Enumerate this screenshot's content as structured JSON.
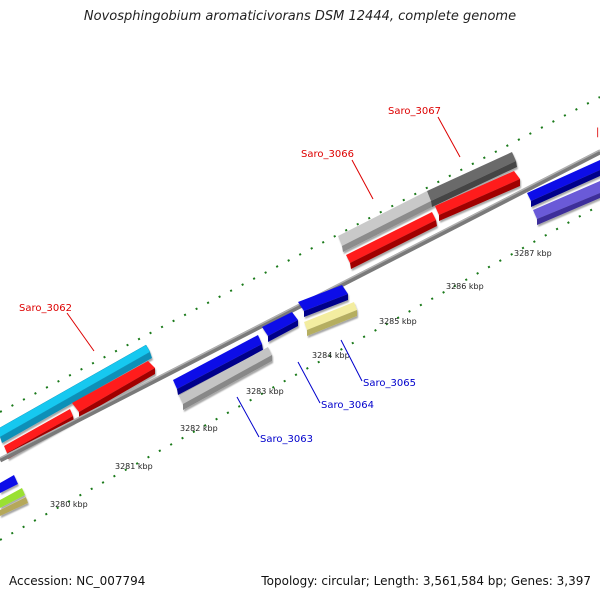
{
  "title": "Novosphingobium aromaticivorans DSM 12444, complete genome",
  "footer": {
    "accession": "Accession: NC_007794",
    "stats": "Topology: circular; Length: 3,561,584 bp; Genes: 3,397"
  },
  "colors": {
    "backbone": "#8a8a8a",
    "ticks": "#1a7a1a",
    "label_red": "#dd0000",
    "label_blue": "#0000cc"
  },
  "scale": [
    {
      "label": "3280 kbp",
      "kbp": 3280
    },
    {
      "label": "3281 kbp",
      "kbp": 3281
    },
    {
      "label": "3282 kbp",
      "kbp": 3282
    },
    {
      "label": "3283 kbp",
      "kbp": 3283
    },
    {
      "label": "3284 kbp",
      "kbp": 3284
    },
    {
      "label": "3285 kbp",
      "kbp": 3285
    },
    {
      "label": "3286 kbp",
      "kbp": 3286
    },
    {
      "label": "3287 kbp",
      "kbp": 3287
    }
  ],
  "gene_labels": [
    {
      "name": "Saro_3062",
      "color": "red"
    },
    {
      "name": "Saro_3063",
      "color": "blue"
    },
    {
      "name": "Saro_3064",
      "color": "blue"
    },
    {
      "name": "Saro_3065",
      "color": "blue"
    },
    {
      "name": "Saro_3066",
      "color": "red"
    },
    {
      "name": "Saro_3067",
      "color": "red"
    }
  ]
}
